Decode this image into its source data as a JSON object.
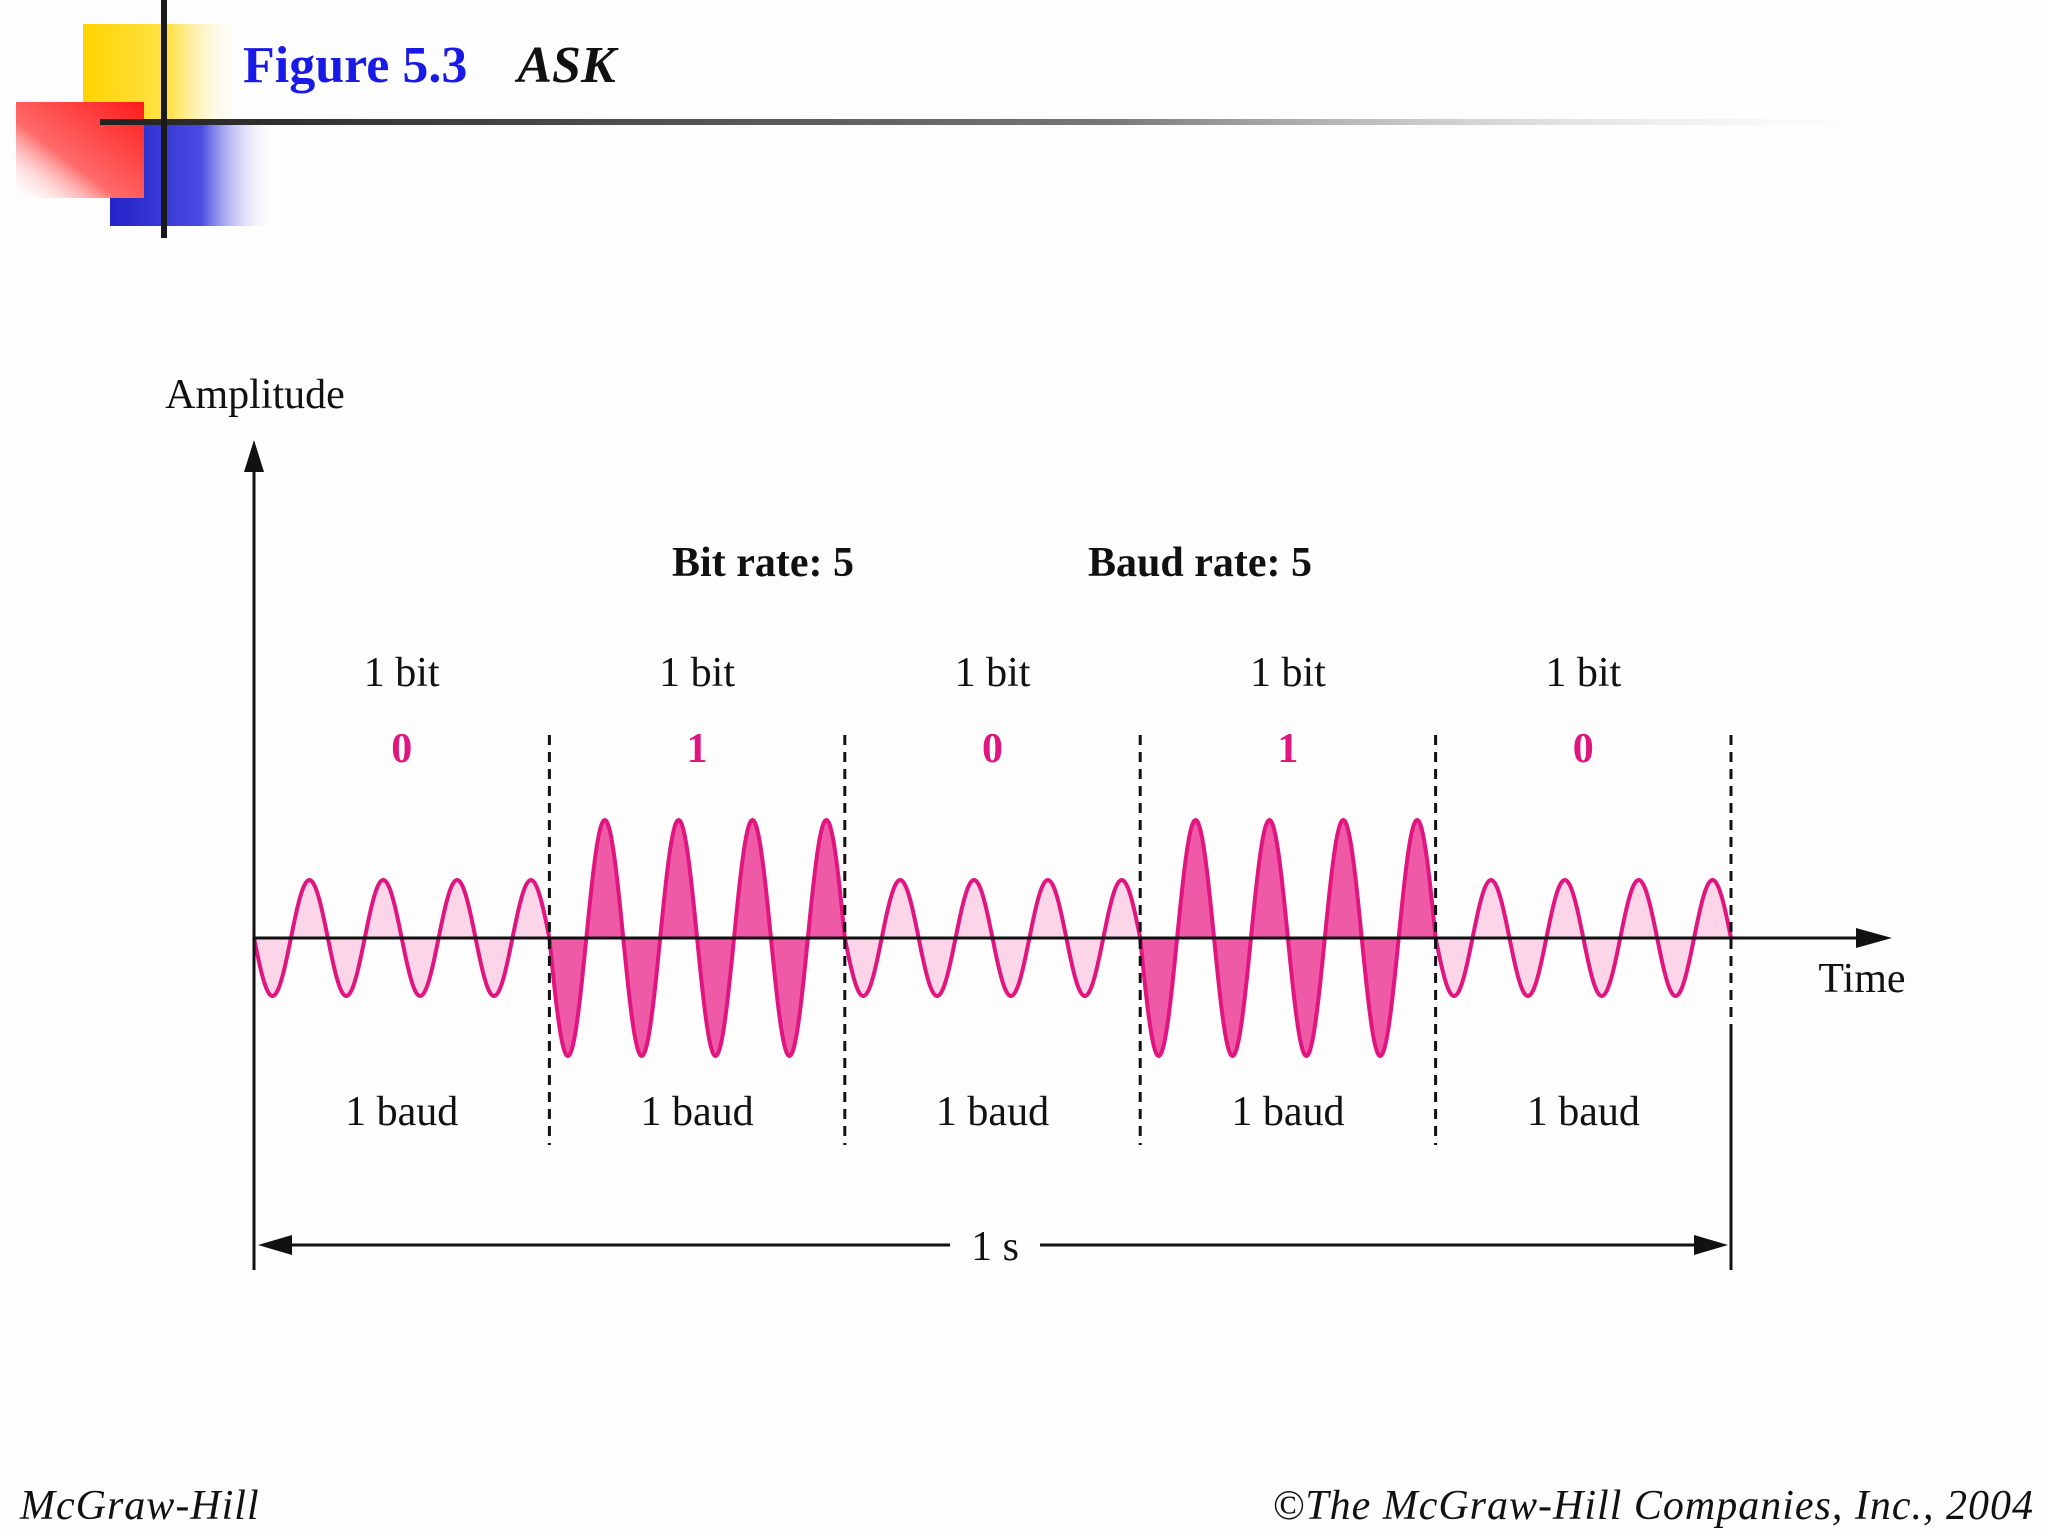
{
  "header": {
    "figure_label": "Figure 5.3",
    "figure_title": "ASK"
  },
  "diagram": {
    "y_axis_label": "Amplitude",
    "x_axis_label": "Time",
    "bit_rate_label": "Bit rate: 5",
    "baud_rate_label": "Baud rate: 5",
    "duration_label": "1 s",
    "segments": [
      {
        "bit_label": "1 bit",
        "bit_value": "0",
        "baud_label": "1 baud",
        "amplitude": "low"
      },
      {
        "bit_label": "1 bit",
        "bit_value": "1",
        "baud_label": "1 baud",
        "amplitude": "high"
      },
      {
        "bit_label": "1 bit",
        "bit_value": "0",
        "baud_label": "1 baud",
        "amplitude": "low"
      },
      {
        "bit_label": "1 bit",
        "bit_value": "1",
        "baud_label": "1 baud",
        "amplitude": "high"
      },
      {
        "bit_label": "1 bit",
        "bit_value": "0",
        "baud_label": "1 baud",
        "amplitude": "low"
      }
    ],
    "wave_color": "#e0157f",
    "fill_low": "#fcd6e8",
    "fill_high": "#ef5aa6"
  },
  "footer": {
    "publisher": "McGraw-Hill",
    "copyright": "©The McGraw-Hill Companies, Inc., 2004"
  }
}
